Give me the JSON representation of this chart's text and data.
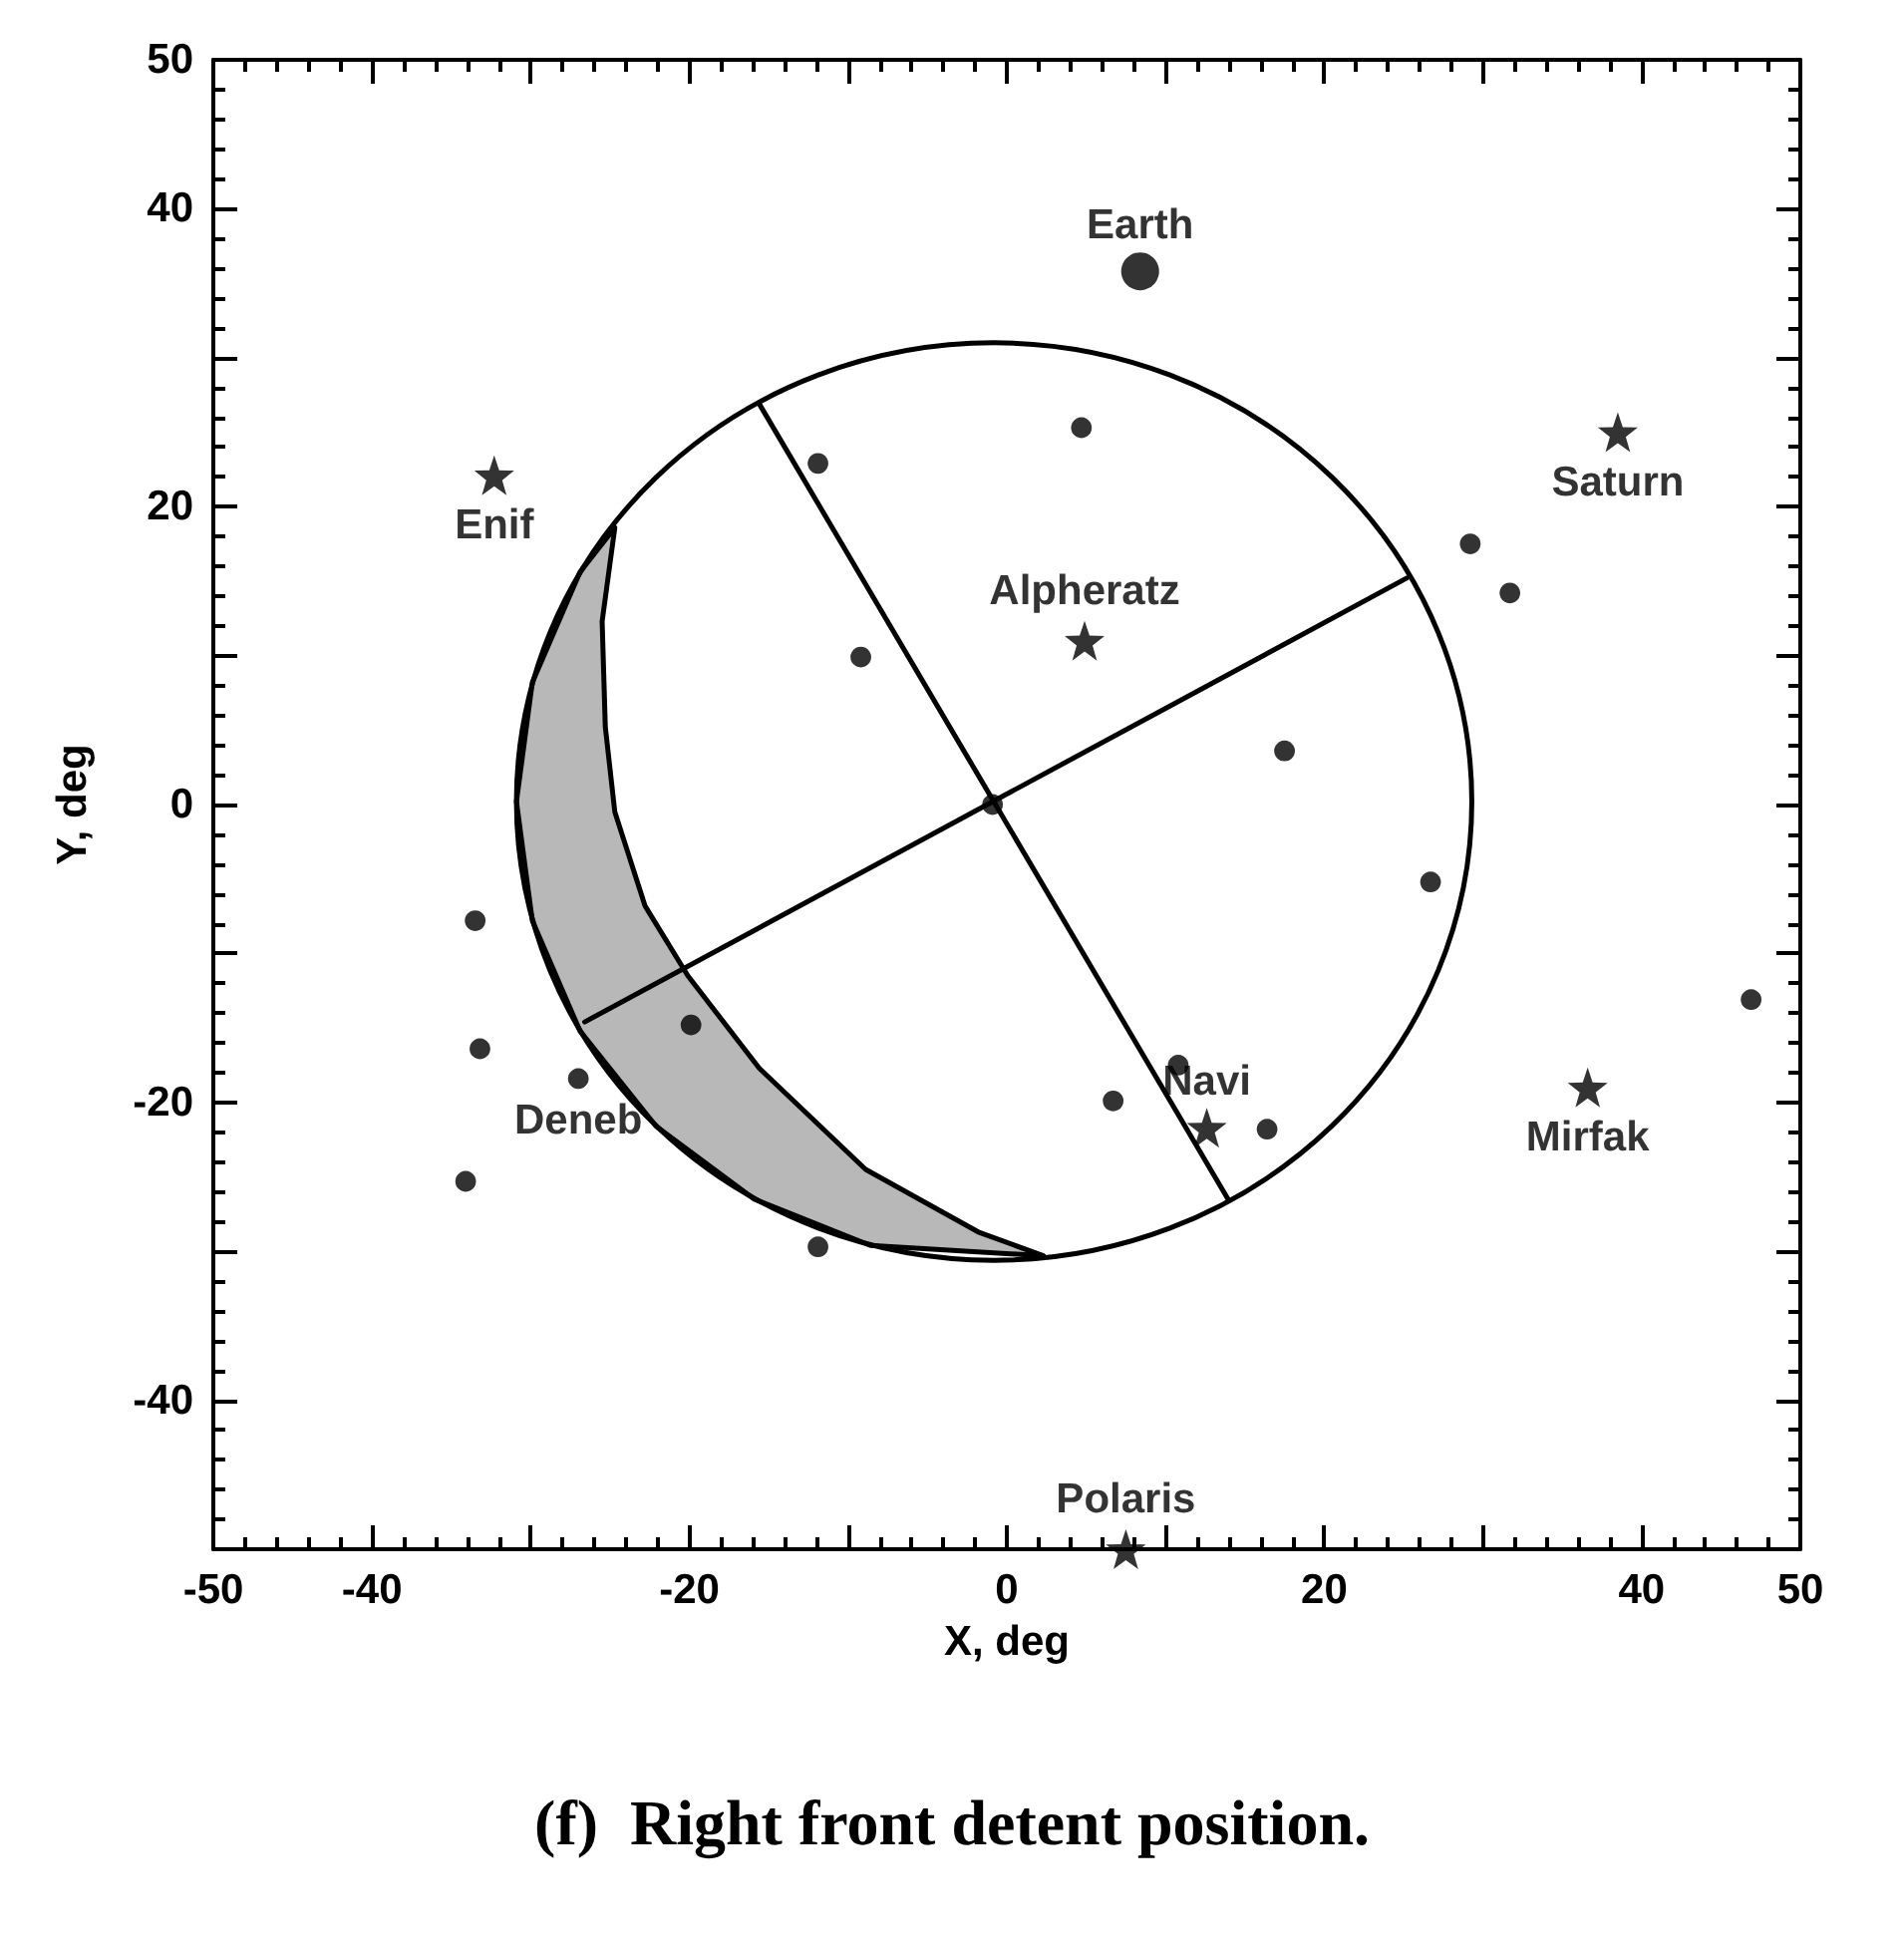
{
  "chart_data": {
    "type": "scatter",
    "title": "(f)  Right front detent position.",
    "xlabel": "X, deg",
    "ylabel": "Y, deg",
    "xlim": [
      -50,
      50
    ],
    "ylim": [
      -50,
      50
    ],
    "xticks": [
      -50,
      -40,
      {
        "value": -30,
        "label": null
      },
      -20,
      {
        "value": -10,
        "label": null
      },
      0,
      {
        "value": 10,
        "label": null
      },
      20,
      {
        "value": 30,
        "label": null
      },
      40,
      50
    ],
    "yticks": [
      {
        "value": -50,
        "label": null
      },
      -40,
      {
        "value": -30,
        "label": null
      },
      -20,
      {
        "value": -10,
        "label": null
      },
      0,
      {
        "value": 10,
        "label": null
      },
      20,
      {
        "value": 30,
        "label": null
      },
      40,
      50
    ],
    "grid": false,
    "series": [
      {
        "type": "line",
        "color": "#000000",
        "marker": "none",
        "line_style": "solid",
        "x": [
          -15.6,
          14.0
        ],
        "values": [
          26.9,
          -26.6
        ]
      },
      {
        "type": "line",
        "color": "#000000",
        "marker": "none",
        "line_style": "solid",
        "x": [
          -26.6,
          25.2
        ],
        "values": [
          -14.6,
          15.2
        ]
      },
      {
        "type": "bubble",
        "color": "#000000",
        "marker": "circle",
        "x": [
          -11.9,
          4.7,
          -9.2,
          17.5,
          29.2,
          31.7,
          26.7,
          46.9,
          -33.5,
          -33.2,
          -27.0,
          -19.9,
          -34.1,
          -11.9,
          6.7,
          10.8,
          16.4,
          -0.9
        ],
        "values": [
          22.9,
          25.3,
          9.9,
          3.6,
          17.5,
          14.2,
          -5.2,
          -13.1,
          -7.8,
          -16.4,
          -18.4,
          -14.8,
          -25.3,
          -29.7,
          -19.9,
          -17.5,
          -21.8,
          0.0
        ],
        "sizes": [
          0.3,
          0.3,
          0.3,
          0.3,
          0.3,
          0.3,
          0.3,
          0.3,
          0.3,
          0.3,
          0.3,
          0.3,
          0.3,
          0.3,
          0.3,
          0.3,
          0.3,
          0.3
        ]
      },
      {
        "type": "bubble",
        "color": "#000000",
        "marker": "circle",
        "x": [
          8.4
        ],
        "values": [
          35.8
        ],
        "sizes": [
          1
        ]
      },
      {
        "color": "#000000",
        "marker": "star",
        "x": [
          -32.3,
          4.9,
          38.5,
          12.6,
          36.6,
          7.5
        ],
        "values": [
          22.1,
          11.0,
          25.0,
          -21.7,
          -19.0,
          -50.0
        ]
      }
    ],
    "annotations": [
      {
        "text": "Earth",
        "x": 8.4,
        "y": 35.8
      },
      {
        "text": "Enif",
        "x": -32.3,
        "y": 22.1
      },
      {
        "text": "Alpheratz",
        "x": 4.9,
        "y": 11.0
      },
      {
        "text": "Saturn",
        "x": 38.5,
        "y": 25.0
      },
      {
        "text": "Navi",
        "x": 12.6,
        "y": -21.7
      },
      {
        "text": "Mirfak",
        "x": 36.6,
        "y": -19.0
      },
      {
        "text": "Polaris",
        "x": 7.5,
        "y": -50.0
      },
      {
        "text": "Deneb",
        "x": -27.0,
        "y": -18.4
      }
    ]
  }
}
